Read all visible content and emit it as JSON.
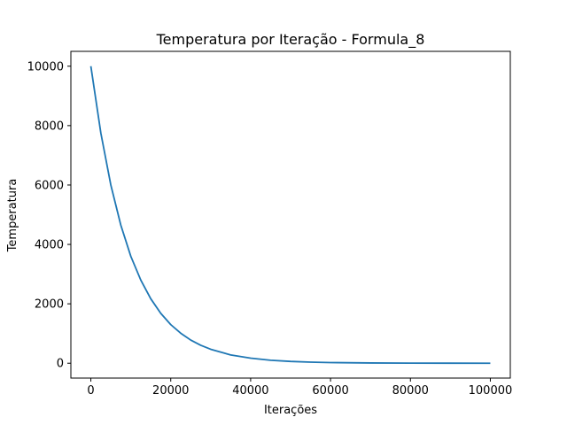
{
  "chart_data": {
    "type": "line",
    "title": "Temperatura por Iteração - Formula_8",
    "xlabel": "Iterações",
    "ylabel": "Temperatura",
    "xlim": [
      -5000,
      105000
    ],
    "ylim": [
      -500,
      10500
    ],
    "xticks": [
      0,
      20000,
      40000,
      60000,
      80000,
      100000
    ],
    "yticks": [
      0,
      2000,
      4000,
      6000,
      8000,
      10000
    ],
    "xtick_labels": [
      "0",
      "20000",
      "40000",
      "60000",
      "80000",
      "100000"
    ],
    "ytick_labels": [
      "0",
      "2000",
      "4000",
      "6000",
      "8000",
      "10000"
    ],
    "grid": false,
    "legend": "none",
    "series": [
      {
        "color": "#1f77b4",
        "x": [
          0,
          2500,
          5000,
          7500,
          10000,
          12500,
          15000,
          17500,
          20000,
          22500,
          25000,
          27500,
          30000,
          35000,
          40000,
          45000,
          50000,
          55000,
          60000,
          70000,
          80000,
          90000,
          100000
        ],
        "y": [
          10000,
          7750,
          6000,
          4650,
          3600,
          2800,
          2170,
          1680,
          1300,
          1010,
          780,
          605,
          470,
          280,
          170,
          100,
          60,
          37,
          22,
          8,
          3,
          1,
          0
        ]
      }
    ]
  }
}
